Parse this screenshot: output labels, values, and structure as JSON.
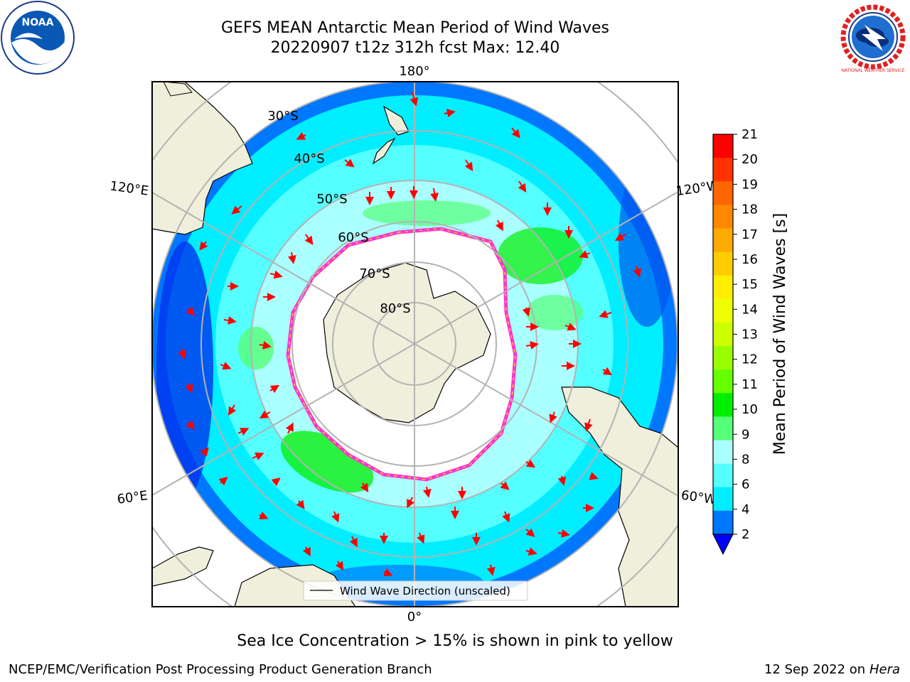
{
  "title": {
    "line1": "GEFS MEAN Antarctic Mean Period of Wind Waves",
    "line2": "20220907 t12z 312h fcst   Max: 12.40"
  },
  "logos": {
    "left": {
      "icon": "noaa-seal-icon",
      "text": "NOAA"
    },
    "right": {
      "icon": "nws-seal-icon",
      "text": "NATIONAL WEATHER SERVICE"
    }
  },
  "map": {
    "projection": "south-polar-stereographic",
    "longitude_labels": [
      "180°",
      "120°E",
      "120°W",
      "60°E",
      "60°W",
      "0°"
    ],
    "latitude_labels": [
      "30°S",
      "40°S",
      "50°S",
      "60°S",
      "70°S",
      "80°S"
    ],
    "legend_entry": "Wind Wave Direction (unscaled)",
    "colors": {
      "land": "#efefdc",
      "ice_edge": [
        "#ff33cc",
        "#ff9999",
        "#ffcc33",
        "#ffff66"
      ],
      "arrows": "#ff0000",
      "graticule": "#b3b3b3"
    }
  },
  "colorbar": {
    "label": "Mean Period of Wind Waves [s]",
    "ticks": [
      "21",
      "20",
      "19",
      "18",
      "17",
      "16",
      "15",
      "14",
      "13",
      "12",
      "11",
      "10",
      "9",
      "8",
      "6",
      "4",
      "2"
    ],
    "colors": [
      "#ff0000",
      "#ff3300",
      "#ff6600",
      "#ff8800",
      "#ffaa00",
      "#ffcc00",
      "#ffee00",
      "#eeff00",
      "#ccff00",
      "#99ff00",
      "#66ff00",
      "#00ee00",
      "#55ff77",
      "#aaffff",
      "#55ffff",
      "#00eeff",
      "#0077ff"
    ],
    "underflow_color": "#0000ff"
  },
  "caption": "Sea Ice Concentration > 15% is shown in pink to yellow",
  "footer": {
    "left": "NCEP/EMC/Verification Post Processing Product Generation Branch",
    "right_date": "12 Sep 2022 on",
    "right_host": "Hera"
  }
}
